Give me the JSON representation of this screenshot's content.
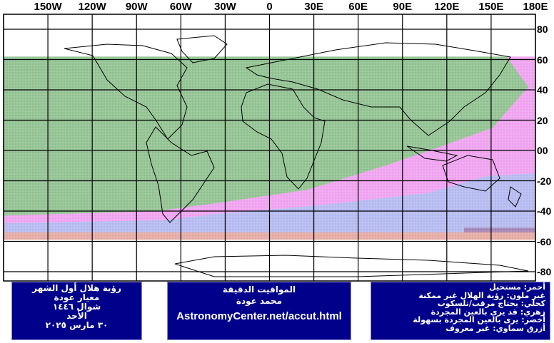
{
  "lon_labels": [
    "150W",
    "120W",
    "90W",
    "60W",
    "30W",
    "0",
    "30E",
    "60E",
    "90E",
    "120E",
    "150E",
    "180E"
  ],
  "lat_labels": [
    "80",
    "60",
    "40",
    "20",
    "00",
    "-20",
    "-40",
    "-60",
    "-80"
  ],
  "colors": {
    "green": "#2f8a2f",
    "magenta": "#e04ee0",
    "blue": "#2030d0",
    "red": "#c0392b",
    "panel_bg": "#00008b",
    "grid": "#000000"
  },
  "visibility_bands": [
    {
      "class": "easily visible by naked eye",
      "color": "green"
    },
    {
      "class": "may be seen by naked eye",
      "color": "magenta"
    },
    {
      "class": "unknown",
      "color": "blue"
    },
    {
      "class": "impossible",
      "color": "red"
    }
  ],
  "panel_left": {
    "lines": [
      "رؤية هلال أول الشهر",
      "معيار عودة",
      "شوال ١٤٤٦",
      "الأحد",
      "٣٠ مارس ٢٠٢٥"
    ]
  },
  "panel_middle": {
    "title": "المواقيت الدقيقة",
    "author": "محمد عودة",
    "url": "AstronomyCenter.net/accut.html"
  },
  "panel_right": {
    "lines": [
      "أحمر: مستحيل",
      "غير ملون: رؤية الهلال غير ممكنة",
      "كحلي: يحتاج مرقب/تلسكوب",
      "زهري: قد يرى بالعين المجردة",
      "أخضر: يرى بالعين المجردة بسهولة",
      "أزرق سماوي: غير معروف"
    ]
  }
}
